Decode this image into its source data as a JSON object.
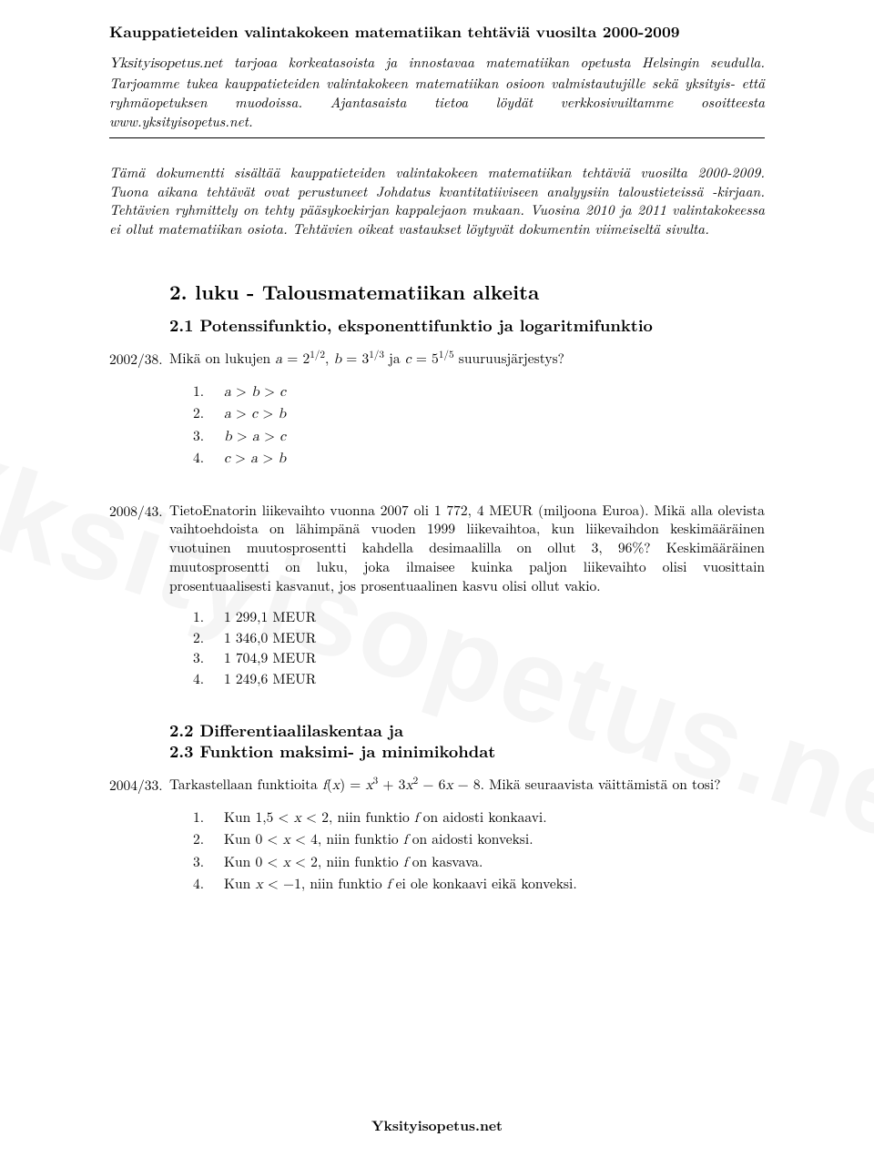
{
  "header": {
    "title": "Kauppatieteiden valintakokeen matematiikan tehtäviä vuosilta 2000-2009",
    "intro_html": "<span class=\"math-i\">Yksityisopetus.net</span> tarjoaa korkeatasoista ja innostavaa matematiikan opetusta Helsingin seudulla. Tarjoamme tukea kauppatieteiden valintakokeen matematiikan osioon valmistautujille sekä yksityis- että ryhmäopetuksen muodoissa. Ajantasaista tietoa löydät verkkosivuiltamme osoitteesta www.yksityisopetus.net."
  },
  "doc_desc": "Tämä dokumentti sisältää kauppatieteiden valintakokeen matematiikan tehtäviä vuosilta 2000-2009. Tuona aikana tehtävät ovat perustuneet Johdatus kvantitatiiviseen analyysiin taloustieteissä -kirjaan. Tehtävien ryhmittely on tehty pääsykoekirjan kappalejaon mukaan. Vuosina 2010 ja 2011 valintakokeessa ei ollut matematiikan osiota. Tehtävien oikeat vastaukset löytyvät dokumentin viimeiseltä sivulta.",
  "chapter": "2. luku - Talousmatematiikan alkeita",
  "section_2_1": "2.1 Potenssifunktio, eksponenttifunktio ja logaritmifunktio",
  "section_2_2": "2.2 Differentiaalilaskentaa ja",
  "section_2_3": "2.3 Funktion maksimi- ja minimikohdat",
  "problems": {
    "p1": {
      "id": "2002/38.",
      "text_html": "Mikä on lukujen <span class=\"math-i\">a</span> = 2<sup>1/2</sup>, <span class=\"math-i\">b</span> = 3<sup>1/3</sup> ja <span class=\"math-i\">c</span> = 5<sup>1/5</sup> suuruusjärjestys?",
      "options": [
        "<span class=\"math-i\">a</span> &gt; <span class=\"math-i\">b</span> &gt; <span class=\"math-i\">c</span>",
        "<span class=\"math-i\">a</span> &gt; <span class=\"math-i\">c</span> &gt; <span class=\"math-i\">b</span>",
        "<span class=\"math-i\">b</span> &gt; <span class=\"math-i\">a</span> &gt; <span class=\"math-i\">c</span>",
        "<span class=\"math-i\">c</span> &gt; <span class=\"math-i\">a</span> &gt; <span class=\"math-i\">b</span>"
      ]
    },
    "p2": {
      "id": "2008/43.",
      "text_html": "TietoEnatorin liikevaihto vuonna 2007 oli 1 772, 4 MEUR (miljoona Euroa). Mikä alla olevista vaihtoehdoista on lähimpänä vuoden 1999 liikevaihtoa, kun liikevaihdon keskimääräinen vuotuinen muutosprosentti kahdella desimaalilla on ollut 3, 96%? Keskimääräinen muutosprosentti on luku, joka ilmaisee kuinka paljon liikevaihto olisi vuosittain prosentuaalisesti kasvanut, jos prosentuaalinen kasvu olisi ollut vakio.",
      "options": [
        "1 299,1 MEUR",
        "1 346,0 MEUR",
        "1 704,9 MEUR",
        "1 249,6 MEUR"
      ]
    },
    "p3": {
      "id": "2004/33.",
      "text_html": "Tarkastellaan funktioita <span class=\"math-i\">f</span>(<span class=\"math-i\">x</span>) = <span class=\"math-i\">x</span><sup>3</sup> + 3<span class=\"math-i\">x</span><sup>2</sup> − 6<span class=\"math-i\">x</span> − 8. Mikä seuraavista väittämistä on tosi?",
      "options": [
        "Kun 1,5 &lt; <span class=\"math-i\">x</span> &lt; 2, niin funktio <span class=\"math-i\">f</span> on aidosti konkaavi.",
        "Kun 0 &lt; <span class=\"math-i\">x</span> &lt; 4, niin funktio <span class=\"math-i\">f</span> on aidosti konveksi.",
        "Kun 0 &lt; <span class=\"math-i\">x</span> &lt; 2, niin funktio <span class=\"math-i\">f</span> on kasvava.",
        "Kun <span class=\"math-i\">x</span> &lt; −1, niin funktio <span class=\"math-i\">f</span> ei ole konkaavi eikä konveksi."
      ]
    }
  },
  "watermark": "Yksityisopetus.net",
  "footer": "Yksityisopetus.net"
}
